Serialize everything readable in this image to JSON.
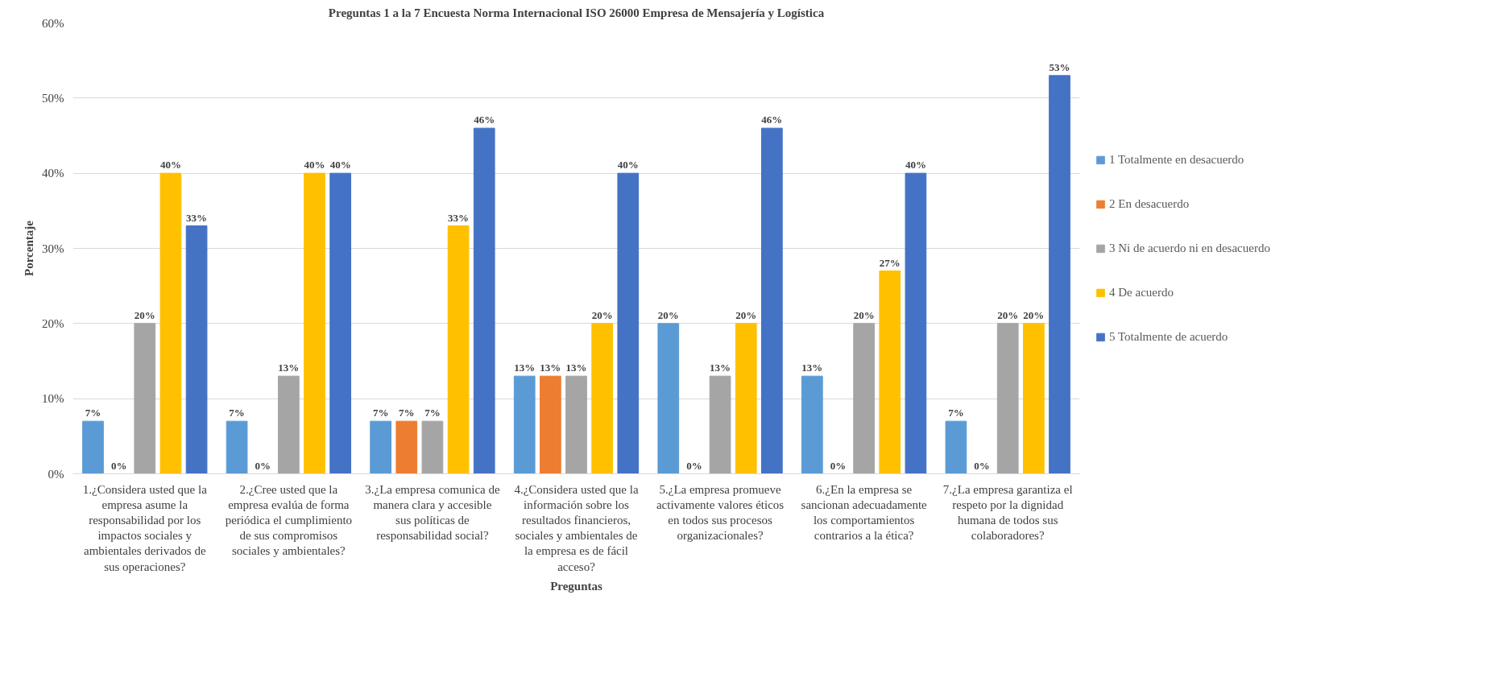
{
  "chart_data": {
    "type": "bar",
    "title": "Preguntas 1 a la 7 Encuesta Norma Internacional ISO 26000 Empresa de Mensajería y Logística",
    "xlabel": "Preguntas",
    "ylabel": "Porcentaje",
    "categories": [
      "1.¿Considera usted que la empresa asume la responsabilidad por los impactos sociales y ambientales derivados de sus operaciones?",
      "2.¿Cree usted que la empresa evalúa de forma periódica el cumplimiento de sus compromisos sociales y ambientales?",
      "3.¿La empresa comunica de manera clara y accesible sus políticas de responsabilidad social?",
      "4.¿Considera usted que la información sobre los resultados financieros, sociales y ambientales de la empresa es de fácil acceso?",
      "5.¿La empresa promueve activamente valores éticos en todos sus procesos organizacionales?",
      "6.¿En la empresa se sancionan adecuadamente los comportamientos contrarios a la ética?",
      "7.¿La empresa garantiza el respeto por la dignidad humana de todos sus colaboradores?"
    ],
    "series": [
      {
        "name": "1 Totalmente en desacuerdo",
        "color": "#5b9bd5",
        "values": [
          7,
          7,
          7,
          13,
          20,
          13,
          7
        ],
        "value_labels": [
          "7%",
          "7%",
          "7%",
          "13%",
          "20%",
          "13%",
          "7%"
        ]
      },
      {
        "name": "2 En desacuerdo",
        "color": "#ed7d31",
        "values": [
          0,
          0,
          7,
          13,
          0,
          0,
          0
        ],
        "value_labels": [
          "0%",
          "0%",
          "7%",
          "13%",
          "0%",
          "0%",
          "0%"
        ]
      },
      {
        "name": "3 Ni de acuerdo ni en desacuerdo",
        "color": "#a5a5a5",
        "values": [
          20,
          13,
          7,
          13,
          13,
          20,
          20
        ],
        "value_labels": [
          "20%",
          "13%",
          "7%",
          "13%",
          "13%",
          "20%",
          "20%"
        ]
      },
      {
        "name": "4 De acuerdo",
        "color": "#ffc000",
        "values": [
          40,
          40,
          33,
          20,
          20,
          27,
          20
        ],
        "value_labels": [
          "40%",
          "40%",
          "33%",
          "20%",
          "20%",
          "27%",
          "20%"
        ]
      },
      {
        "name": "5 Totalmente de acuerdo",
        "color": "#4472c4",
        "values": [
          33,
          40,
          46,
          40,
          46,
          40,
          53
        ],
        "value_labels": [
          "33%",
          "40%",
          "46%",
          "40%",
          "46%",
          "40%",
          "53%"
        ]
      }
    ],
    "ylim": [
      0,
      60
    ],
    "yticks": [
      {
        "value": 0,
        "label": "0%"
      },
      {
        "value": 10,
        "label": "10%"
      },
      {
        "value": 20,
        "label": "20%"
      },
      {
        "value": 30,
        "label": "30%"
      },
      {
        "value": 40,
        "label": "40%"
      },
      {
        "value": 50,
        "label": "50%"
      },
      {
        "value": 60,
        "label": "60%"
      }
    ],
    "grid": "y",
    "legend": "right"
  }
}
